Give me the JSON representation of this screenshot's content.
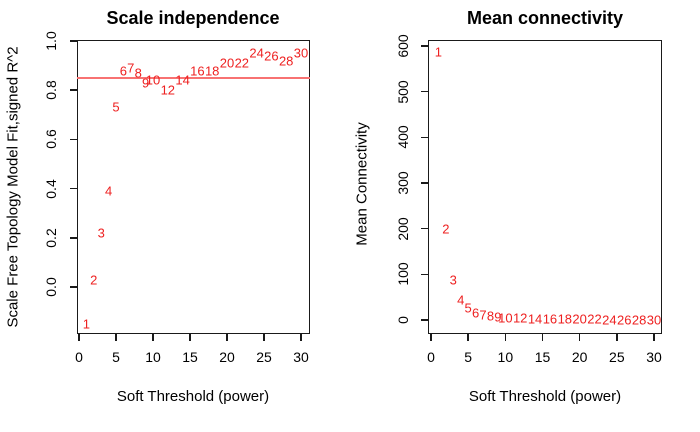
{
  "figure": {
    "background": "#ffffff",
    "axis_color": "#1a1a1a",
    "point_color": "#ee2020",
    "hline_color": "#f87272"
  },
  "chart_data": [
    {
      "type": "scatter",
      "title": "Scale independence",
      "xlabel": "Soft Threshold (power)",
      "ylabel": "Scale Free Topology Model Fit,signed R^2",
      "marker": "text-power-labels",
      "grid": false,
      "legend": "none",
      "xlim": [
        -0.3,
        31.2
      ],
      "ylim": [
        -0.19,
        1.0
      ],
      "xtick_values": [
        0,
        5,
        10,
        15,
        20,
        25,
        30
      ],
      "xtick_labels": [
        "0",
        "5",
        "10",
        "15",
        "20",
        "25",
        "30"
      ],
      "ytick_values": [
        0.0,
        0.2,
        0.4,
        0.6,
        0.8,
        1.0
      ],
      "ytick_labels": [
        "0.0",
        "0.2",
        "0.4",
        "0.6",
        "0.8",
        "1.0"
      ],
      "x": [
        1,
        2,
        3,
        4,
        5,
        6,
        7,
        8,
        9,
        10,
        12,
        14,
        16,
        18,
        20,
        22,
        24,
        26,
        28,
        30
      ],
      "y": [
        -0.15,
        0.03,
        0.22,
        0.39,
        0.73,
        0.88,
        0.89,
        0.87,
        0.83,
        0.84,
        0.8,
        0.84,
        0.88,
        0.88,
        0.91,
        0.91,
        0.95,
        0.94,
        0.92,
        0.95
      ],
      "point_labels": [
        "1",
        "2",
        "3",
        "4",
        "5",
        "6",
        "7",
        "8",
        "9",
        "10",
        "12",
        "14",
        "16",
        "18",
        "20",
        "22",
        "24",
        "26",
        "28",
        "30"
      ],
      "hline_y": 0.85
    },
    {
      "type": "scatter",
      "title": "Mean connectivity",
      "xlabel": "Soft Threshold (power)",
      "ylabel": "Mean Connectivity",
      "marker": "text-power-labels",
      "grid": false,
      "legend": "none",
      "xlim": [
        -0.3,
        31.2
      ],
      "ylim": [
        -31,
        612
      ],
      "xtick_values": [
        0,
        5,
        10,
        15,
        20,
        25,
        30
      ],
      "xtick_labels": [
        "0",
        "5",
        "10",
        "15",
        "20",
        "25",
        "30"
      ],
      "ytick_values": [
        0,
        100,
        200,
        300,
        400,
        500,
        600
      ],
      "ytick_labels": [
        "0",
        "100",
        "200",
        "300",
        "400",
        "500",
        "600"
      ],
      "x": [
        1,
        2,
        3,
        4,
        5,
        6,
        7,
        8,
        9,
        10,
        12,
        14,
        16,
        18,
        20,
        22,
        24,
        26,
        28,
        30
      ],
      "y": [
        587,
        200,
        88,
        44,
        26,
        16,
        11,
        8,
        6,
        5,
        3.5,
        2.5,
        2,
        1.6,
        1.3,
        1.1,
        0.9,
        0.8,
        0.7,
        0.6
      ],
      "point_labels": [
        "1",
        "2",
        "3",
        "4",
        "5",
        "6",
        "7",
        "8",
        "9",
        "10",
        "12",
        "14",
        "16",
        "18",
        "20",
        "22",
        "24",
        "26",
        "28",
        "30"
      ],
      "hline_y": null
    }
  ]
}
